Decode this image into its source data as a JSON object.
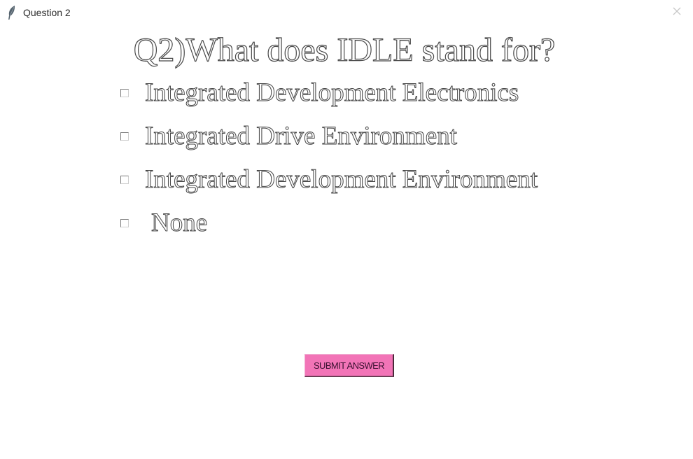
{
  "window": {
    "title": "Question 2",
    "app_icon": "feather-icon",
    "close_icon": "close-icon"
  },
  "question": {
    "text": "Q2)What does IDLE stand for?"
  },
  "options": [
    {
      "label": "Integrated Development Electronics",
      "checked": false
    },
    {
      "label": "Integrated Drive Environment",
      "checked": false
    },
    {
      "label": "Integrated Development Environment",
      "checked": false
    },
    {
      "label": "None",
      "checked": false
    }
  ],
  "submit": {
    "label": "SUBMIT ANSWER",
    "color": "#f274b7"
  }
}
